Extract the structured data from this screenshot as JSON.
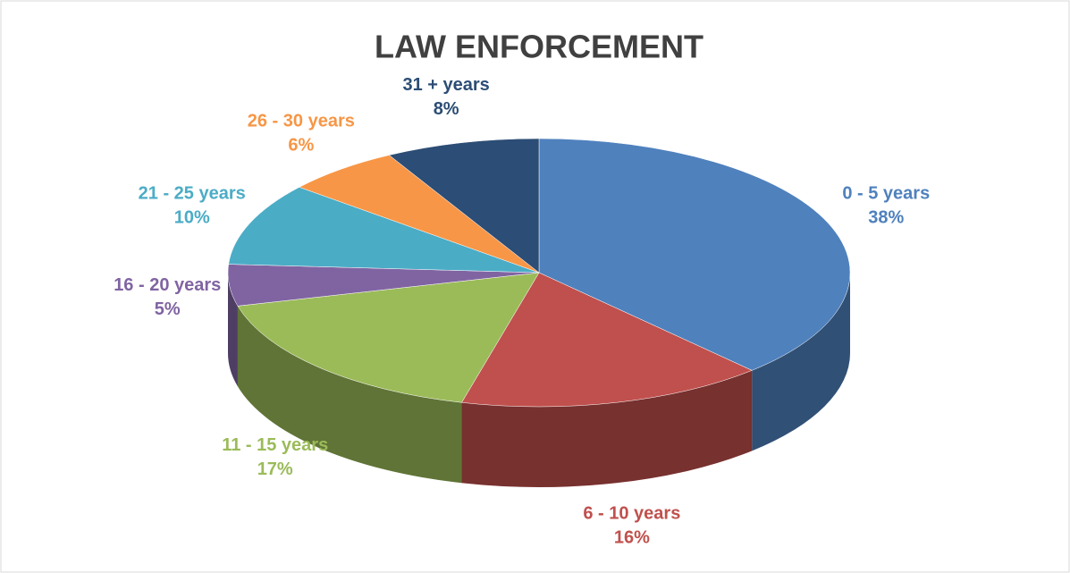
{
  "chart_data": {
    "type": "pie3d",
    "title": "LAW ENFORCEMENT",
    "categories": [
      "0 - 5 years",
      "6 - 10 years",
      "11 - 15 years",
      "16 - 20 years",
      "21 - 25 years",
      "26 - 30 years",
      "31 + years"
    ],
    "values": [
      38,
      16,
      17,
      5,
      10,
      6,
      8
    ],
    "value_labels": [
      "38%",
      "16%",
      "17%",
      "5%",
      "10%",
      "6%",
      "8%"
    ],
    "colors": [
      "#4f81bd",
      "#c0504d",
      "#9bbb59",
      "#8064a2",
      "#4bacc6",
      "#f79646",
      "#2c4d75"
    ]
  }
}
